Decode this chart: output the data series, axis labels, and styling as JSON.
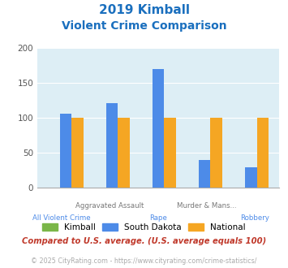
{
  "title_line1": "2019 Kimball",
  "title_line2": "Violent Crime Comparison",
  "categories": [
    "All Violent Crime",
    "Aggravated Assault",
    "Rape",
    "Murder & Mans...",
    "Robbery"
  ],
  "label_top": [
    "",
    "Aggravated Assault",
    "",
    "Murder & Mans...",
    ""
  ],
  "label_bot": [
    "All Violent Crime",
    "",
    "Rape",
    "",
    "Robbery"
  ],
  "kimball": [
    0,
    0,
    0,
    0,
    0
  ],
  "south_dakota": [
    106,
    121,
    170,
    40,
    29
  ],
  "national": [
    100,
    100,
    100,
    100,
    100
  ],
  "colors": {
    "kimball": "#7ab648",
    "south_dakota": "#4d8be8",
    "national": "#f5a623"
  },
  "ylim": [
    0,
    200
  ],
  "yticks": [
    0,
    50,
    100,
    150,
    200
  ],
  "plot_bg": "#ddeef5",
  "title_color": "#1a6fbe",
  "label_top_color": "#777777",
  "label_bot_color": "#4d8be8",
  "footnote1": "Compared to U.S. average. (U.S. average equals 100)",
  "footnote2": "© 2025 CityRating.com - https://www.cityrating.com/crime-statistics/",
  "footnote1_color": "#c0392b",
  "footnote2_color": "#aaaaaa"
}
